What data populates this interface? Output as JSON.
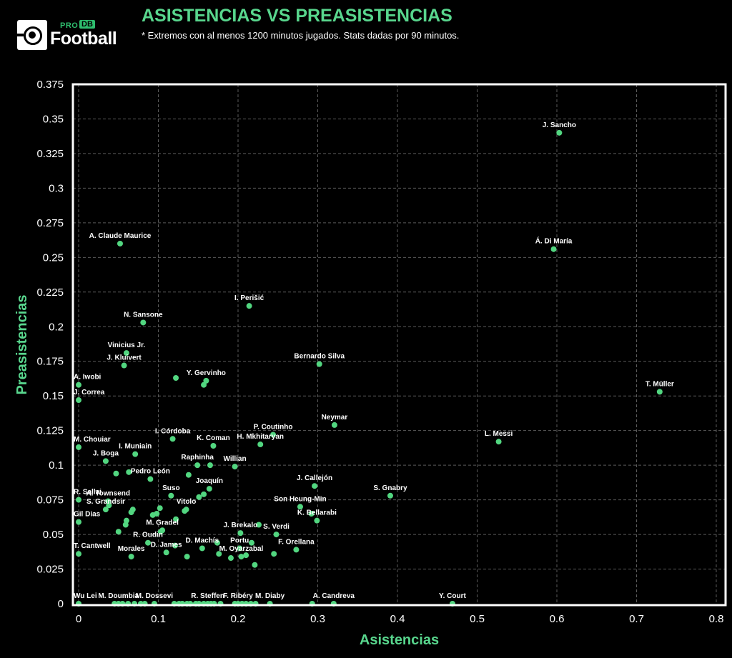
{
  "header": {
    "title": "ASISTENCIAS VS PREASISTENCIAS",
    "subtitle": "* Extremos con al menos 1200 minutos jugados. Stats dadas por 90 minutos.",
    "logo_text": "Football",
    "logo_pro": "PRO",
    "logo_db": "DB"
  },
  "colors": {
    "background": "#000000",
    "accent": "#58d68d",
    "point": "#52d680",
    "grid": "#5a5a5a",
    "frame": "#ffffff"
  },
  "chart_data": {
    "type": "scatter",
    "title": "ASISTENCIAS VS PREASISTENCIAS",
    "xlabel": "Asistencias",
    "ylabel": "Preasistencias",
    "xlim": [
      0,
      0.8
    ],
    "ylim": [
      0,
      0.375
    ],
    "xticks": [
      0,
      0.1,
      0.2,
      0.3,
      0.4,
      0.5,
      0.6,
      0.7,
      0.8
    ],
    "xtick_labels": [
      "0",
      "0.1",
      "0.2",
      "0.3",
      "0.4",
      "0.5",
      "0.6",
      "0.7",
      "0.8"
    ],
    "yticks": [
      0,
      0.025,
      0.05,
      0.075,
      0.1,
      0.125,
      0.15,
      0.175,
      0.2,
      0.225,
      0.25,
      0.275,
      0.3,
      0.325,
      0.35,
      0.375
    ],
    "ytick_labels": [
      "0",
      "0.025",
      "0.05",
      "0.075",
      "0.1",
      "0.125",
      "0.15",
      "0.175",
      "0.2",
      "0.225",
      "0.25",
      "0.275",
      "0.3",
      "0.325",
      "0.35",
      "0.375"
    ],
    "grid": true,
    "points": [
      {
        "label": "J. Sancho",
        "x": 0.603,
        "y": 0.34
      },
      {
        "label": "Á. Di María",
        "x": 0.596,
        "y": 0.256
      },
      {
        "label": "T. Müller",
        "x": 0.729,
        "y": 0.153
      },
      {
        "label": "L. Messi",
        "x": 0.527,
        "y": 0.117
      },
      {
        "label": "A. Claude Maurice",
        "x": 0.052,
        "y": 0.26
      },
      {
        "label": "I. Perišić",
        "x": 0.214,
        "y": 0.215
      },
      {
        "label": "N. Sansone",
        "x": 0.081,
        "y": 0.203
      },
      {
        "label": "Vinicius Jr.",
        "x": 0.06,
        "y": 0.181
      },
      {
        "label": "J. Kluivert",
        "x": 0.057,
        "y": 0.172
      },
      {
        "label": "Bernardo Silva",
        "x": 0.302,
        "y": 0.173
      },
      {
        "label": "A. Iwobi",
        "x": 0.0,
        "y": 0.158
      },
      {
        "label": "J. Correa",
        "x": 0.0,
        "y": 0.147
      },
      {
        "label": "Y. Gervinho",
        "x": 0.16,
        "y": 0.161
      },
      {
        "label": "Neymar",
        "x": 0.321,
        "y": 0.129
      },
      {
        "label": "P. Coutinho",
        "x": 0.244,
        "y": 0.122
      },
      {
        "label": "H. Mkhitaryan",
        "x": 0.228,
        "y": 0.115
      },
      {
        "label": "I. Córdoba",
        "x": 0.118,
        "y": 0.119
      },
      {
        "label": "K. Coman",
        "x": 0.169,
        "y": 0.114
      },
      {
        "label": "M. Chouiar",
        "x": 0.0,
        "y": 0.113
      },
      {
        "label": "I. Muniain",
        "x": 0.071,
        "y": 0.108
      },
      {
        "label": "J. Boga",
        "x": 0.034,
        "y": 0.103
      },
      {
        "label": "Raphinha",
        "x": 0.149,
        "y": 0.1
      },
      {
        "label": "Willian",
        "x": 0.196,
        "y": 0.099
      },
      {
        "label": "Pedro León",
        "x": 0.09,
        "y": 0.09
      },
      {
        "label": "J. Callejón",
        "x": 0.296,
        "y": 0.085
      },
      {
        "label": "Joaquín",
        "x": 0.164,
        "y": 0.083
      },
      {
        "label": "S. Gnabry",
        "x": 0.391,
        "y": 0.078
      },
      {
        "label": "R. Sallai",
        "x": 0.0,
        "y": 0.075
      },
      {
        "label": "Suso",
        "x": 0.116,
        "y": 0.078
      },
      {
        "label": "A. Townsend",
        "x": 0.037,
        "y": 0.074
      },
      {
        "label": "Vitolo",
        "x": 0.135,
        "y": 0.068
      },
      {
        "label": "Son Heung-Min",
        "x": 0.278,
        "y": 0.07
      },
      {
        "label": "Gil Dias",
        "x": 0.0,
        "y": 0.059
      },
      {
        "label": "S. Grandsir",
        "x": 0.034,
        "y": 0.068
      },
      {
        "label": "K. Bellarabi",
        "x": 0.299,
        "y": 0.06
      },
      {
        "label": "M. Gradel",
        "x": 0.105,
        "y": 0.053
      },
      {
        "label": "J. Brekalo",
        "x": 0.203,
        "y": 0.051
      },
      {
        "label": "S. Verdi",
        "x": 0.248,
        "y": 0.05
      },
      {
        "label": "R. Oudin",
        "x": 0.087,
        "y": 0.044
      },
      {
        "label": "D. Machís",
        "x": 0.155,
        "y": 0.04
      },
      {
        "label": "D. James",
        "x": 0.11,
        "y": 0.037
      },
      {
        "label": "T. Cantwell",
        "x": 0.0,
        "y": 0.036
      },
      {
        "label": "Morales",
        "x": 0.066,
        "y": 0.034
      },
      {
        "label": "Portu",
        "x": 0.202,
        "y": 0.04
      },
      {
        "label": "F. Orellana",
        "x": 0.273,
        "y": 0.039
      },
      {
        "label": "M. Oyarzabal",
        "x": 0.204,
        "y": 0.034
      },
      {
        "label": "Wu Lei",
        "x": 0.0,
        "y": 0.0
      },
      {
        "label": "M. Doumbia",
        "x": 0.05,
        "y": 0.0
      },
      {
        "label": "M. Dossevi",
        "x": 0.095,
        "y": 0.0
      },
      {
        "label": "R. Steffen",
        "x": 0.162,
        "y": 0.0
      },
      {
        "label": "F. Ribéry",
        "x": 0.2,
        "y": 0.0
      },
      {
        "label": "M. Diaby",
        "x": 0.24,
        "y": 0.0
      },
      {
        "label": "A. Candreva",
        "x": 0.32,
        "y": 0.0
      },
      {
        "label": "Y. Court",
        "x": 0.469,
        "y": 0.0
      },
      {
        "label": "",
        "x": 0.122,
        "y": 0.163
      },
      {
        "label": "",
        "x": 0.157,
        "y": 0.158
      },
      {
        "label": "",
        "x": 0.047,
        "y": 0.094
      },
      {
        "label": "",
        "x": 0.063,
        "y": 0.095
      },
      {
        "label": "",
        "x": 0.138,
        "y": 0.093
      },
      {
        "label": "",
        "x": 0.165,
        "y": 0.1
      },
      {
        "label": "",
        "x": 0.151,
        "y": 0.077
      },
      {
        "label": "",
        "x": 0.157,
        "y": 0.079
      },
      {
        "label": "",
        "x": 0.038,
        "y": 0.071
      },
      {
        "label": "",
        "x": 0.068,
        "y": 0.068
      },
      {
        "label": "",
        "x": 0.066,
        "y": 0.066
      },
      {
        "label": "",
        "x": 0.102,
        "y": 0.069
      },
      {
        "label": "",
        "x": 0.098,
        "y": 0.065
      },
      {
        "label": "",
        "x": 0.093,
        "y": 0.064
      },
      {
        "label": "",
        "x": 0.133,
        "y": 0.067
      },
      {
        "label": "",
        "x": 0.122,
        "y": 0.061
      },
      {
        "label": "",
        "x": 0.06,
        "y": 0.06
      },
      {
        "label": "",
        "x": 0.059,
        "y": 0.057
      },
      {
        "label": "",
        "x": 0.05,
        "y": 0.052
      },
      {
        "label": "",
        "x": 0.103,
        "y": 0.052
      },
      {
        "label": "",
        "x": 0.226,
        "y": 0.057
      },
      {
        "label": "",
        "x": 0.292,
        "y": 0.065
      },
      {
        "label": "",
        "x": 0.121,
        "y": 0.042
      },
      {
        "label": "",
        "x": 0.174,
        "y": 0.044
      },
      {
        "label": "",
        "x": 0.217,
        "y": 0.044
      },
      {
        "label": "",
        "x": 0.21,
        "y": 0.035
      },
      {
        "label": "",
        "x": 0.176,
        "y": 0.036
      },
      {
        "label": "",
        "x": 0.191,
        "y": 0.033
      },
      {
        "label": "",
        "x": 0.245,
        "y": 0.036
      },
      {
        "label": "",
        "x": 0.221,
        "y": 0.028
      },
      {
        "label": "",
        "x": 0.136,
        "y": 0.034
      },
      {
        "label": "",
        "x": 0.045,
        "y": 0.0
      },
      {
        "label": "",
        "x": 0.055,
        "y": 0.0
      },
      {
        "label": "",
        "x": 0.062,
        "y": 0.0
      },
      {
        "label": "",
        "x": 0.07,
        "y": 0.0
      },
      {
        "label": "",
        "x": 0.078,
        "y": 0.0
      },
      {
        "label": "",
        "x": 0.083,
        "y": 0.0
      },
      {
        "label": "",
        "x": 0.12,
        "y": 0.0
      },
      {
        "label": "",
        "x": 0.126,
        "y": 0.0
      },
      {
        "label": "",
        "x": 0.13,
        "y": 0.0
      },
      {
        "label": "",
        "x": 0.136,
        "y": 0.0
      },
      {
        "label": "",
        "x": 0.14,
        "y": 0.0
      },
      {
        "label": "",
        "x": 0.147,
        "y": 0.0
      },
      {
        "label": "",
        "x": 0.151,
        "y": 0.0
      },
      {
        "label": "",
        "x": 0.157,
        "y": 0.0
      },
      {
        "label": "",
        "x": 0.166,
        "y": 0.0
      },
      {
        "label": "",
        "x": 0.17,
        "y": 0.0
      },
      {
        "label": "",
        "x": 0.178,
        "y": 0.0
      },
      {
        "label": "",
        "x": 0.196,
        "y": 0.0
      },
      {
        "label": "",
        "x": 0.205,
        "y": 0.0
      },
      {
        "label": "",
        "x": 0.21,
        "y": 0.0
      },
      {
        "label": "",
        "x": 0.216,
        "y": 0.0
      },
      {
        "label": "",
        "x": 0.222,
        "y": 0.0
      },
      {
        "label": "",
        "x": 0.293,
        "y": 0.0
      }
    ]
  }
}
